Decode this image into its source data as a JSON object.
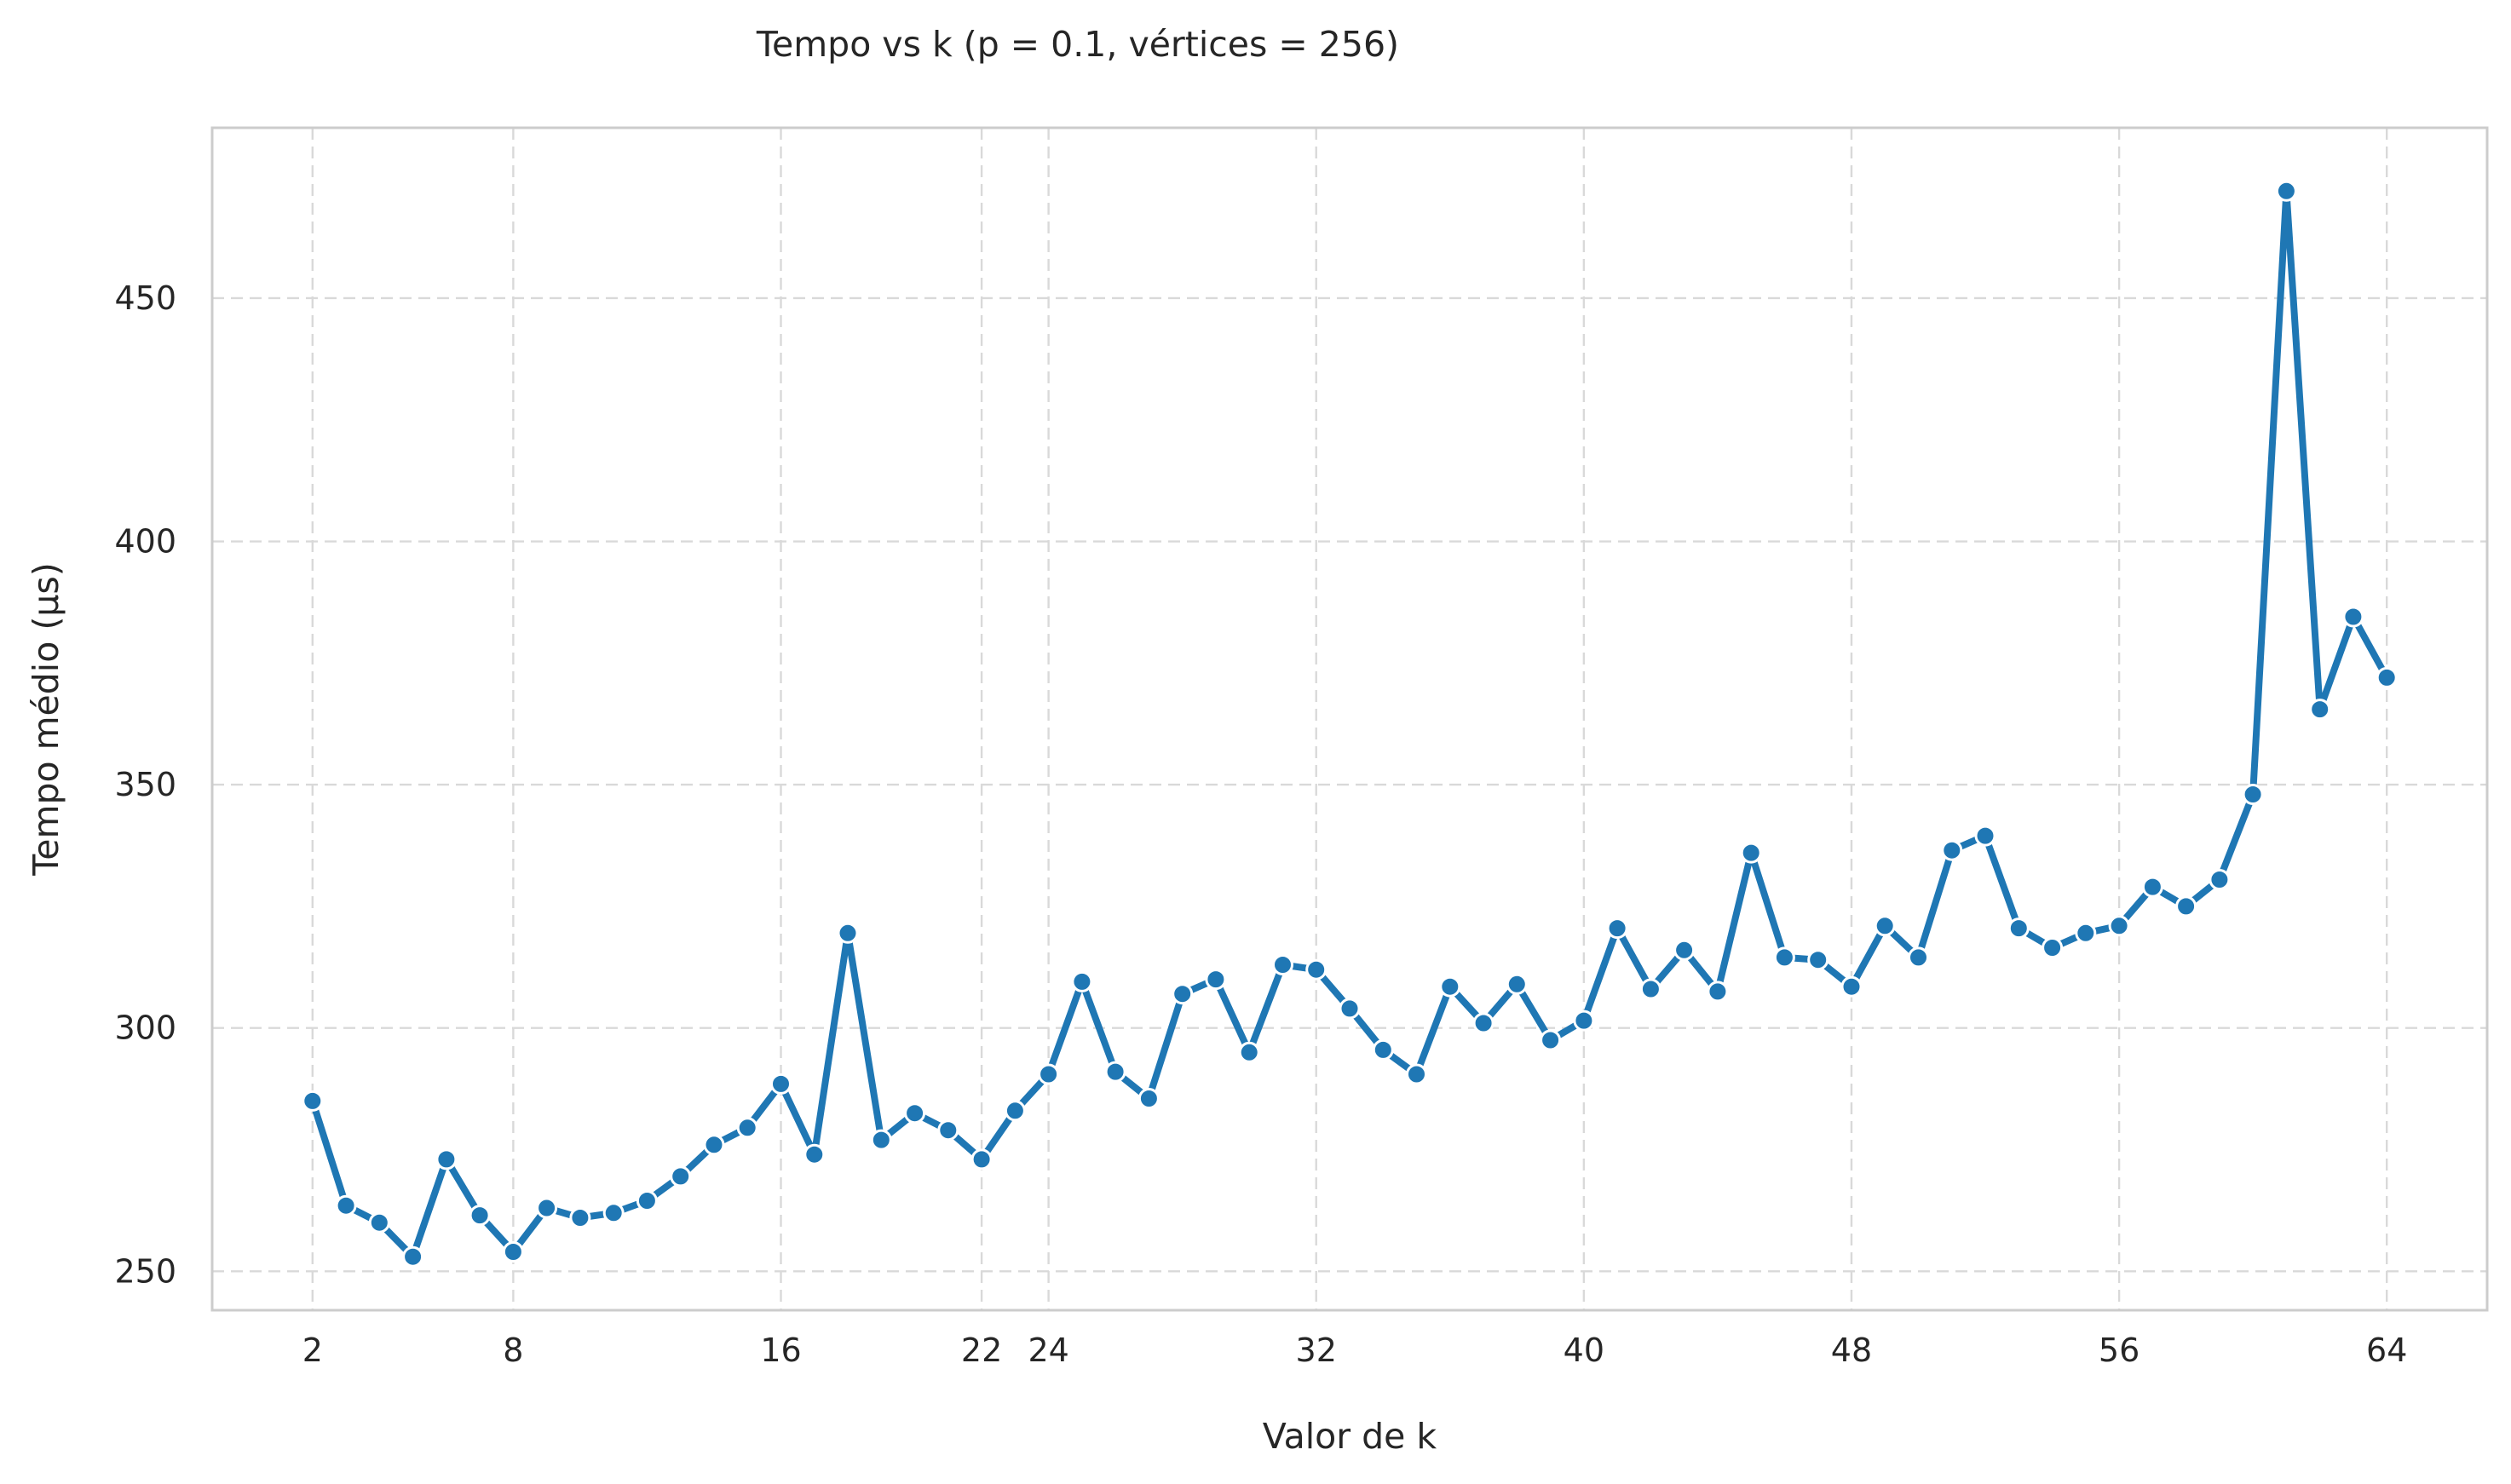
{
  "chart_data": {
    "type": "line",
    "title": "Tempo vs k (p = 0.1, vértices = 256)",
    "xlabel": "Valor de k",
    "ylabel": "Tempo médio (µs)",
    "xlim": [
      -1,
      67
    ],
    "ylim": [
      242,
      485
    ],
    "x_ticks": [
      2,
      8,
      16,
      22,
      24,
      32,
      40,
      48,
      56,
      64
    ],
    "y_ticks": [
      250,
      300,
      350,
      400,
      450
    ],
    "grid": true,
    "colors": {
      "series": "#1f77b4",
      "grid": "#d9d9d9",
      "frame": "#cccccc",
      "text": "#262626"
    },
    "series": [
      {
        "name": "Tempo médio",
        "x": [
          2,
          3,
          4,
          5,
          6,
          7,
          8,
          9,
          10,
          11,
          12,
          13,
          14,
          15,
          16,
          17,
          18,
          19,
          20,
          21,
          22,
          23,
          24,
          25,
          26,
          27,
          28,
          29,
          30,
          31,
          32,
          33,
          34,
          35,
          36,
          37,
          38,
          39,
          40,
          41,
          42,
          43,
          44,
          45,
          46,
          47,
          48,
          49,
          50,
          51,
          52,
          53,
          54,
          55,
          56,
          57,
          58,
          59,
          60,
          61,
          62,
          63,
          64
        ],
        "values": [
          285,
          263.5,
          260,
          253,
          273,
          261.5,
          254,
          263,
          261,
          262,
          264.5,
          269.5,
          276,
          279.5,
          288.5,
          274,
          319.5,
          277,
          282.5,
          279,
          273,
          283,
          290.5,
          309.5,
          291,
          285.5,
          307,
          310,
          295,
          313,
          312,
          304,
          295.5,
          290.5,
          308.5,
          301,
          309,
          297.5,
          301.5,
          320.5,
          308,
          316,
          307.5,
          336,
          314.5,
          314,
          308.5,
          321,
          314.5,
          336.5,
          339.5,
          320.5,
          316.5,
          319.5,
          321,
          329,
          325,
          330.5,
          348,
          472,
          365.5,
          384.5,
          372
        ]
      }
    ]
  }
}
